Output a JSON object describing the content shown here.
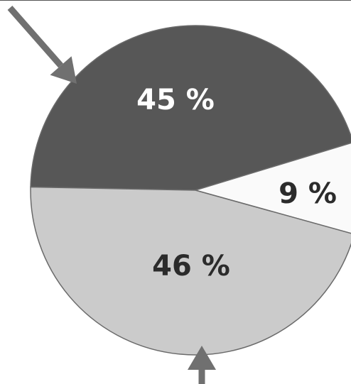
{
  "chart_data": {
    "type": "pie",
    "title": "",
    "slices": [
      {
        "label": "45 %",
        "value": 45,
        "color": "#575757",
        "text_color": "#ffffff"
      },
      {
        "label": "9 %",
        "value": 9,
        "color": "#fafafa",
        "text_color": "#2b2b2b"
      },
      {
        "label": "46 %",
        "value": 46,
        "color": "#cbcbcb",
        "text_color": "#2b2b2b"
      }
    ],
    "legend": "none",
    "annotations": [
      {
        "type": "arrow",
        "color": "#707070",
        "points_to": "slice-45"
      },
      {
        "type": "arrow",
        "color": "#707070",
        "points_to": "slice-46"
      }
    ]
  }
}
